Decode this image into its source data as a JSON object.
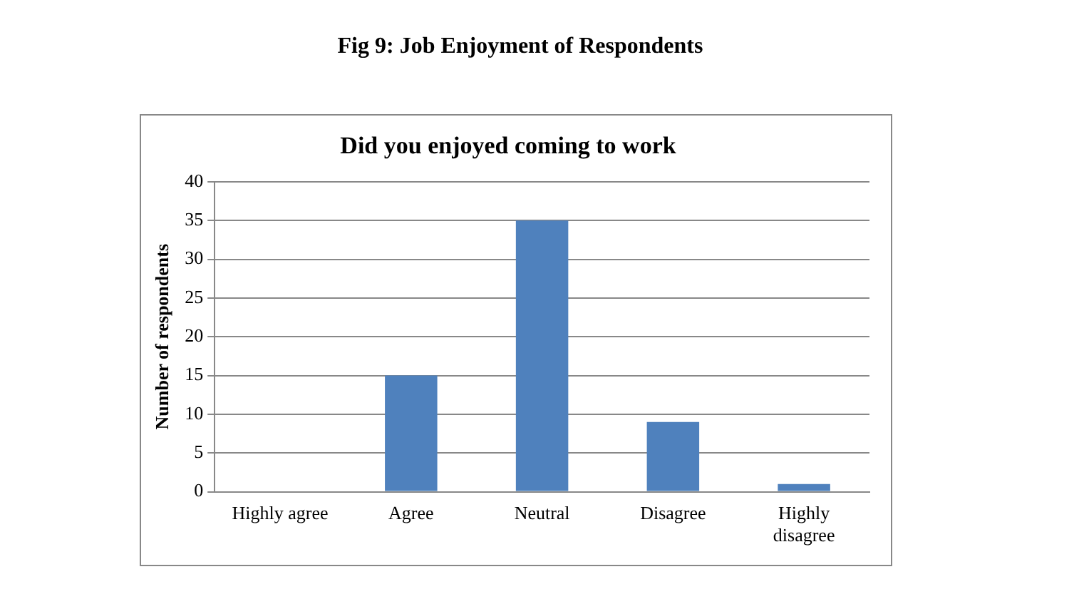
{
  "chart_data": {
    "type": "bar",
    "title": "Fig 9: Job Enjoyment of Respondents",
    "subtitle": "Did you enjoyed coming to work",
    "ylabel": "Number of respondents",
    "categories": [
      "Highly agree",
      "Agree",
      "Neutral",
      "Disagree",
      "Highly disagree"
    ],
    "values": [
      0,
      15,
      35,
      9,
      1
    ],
    "color": "#4f81bd",
    "ylim": [
      0,
      40
    ],
    "yticks": [
      0,
      5,
      10,
      15,
      20,
      25,
      30,
      35,
      40
    ],
    "grid": "y",
    "legend": false
  }
}
